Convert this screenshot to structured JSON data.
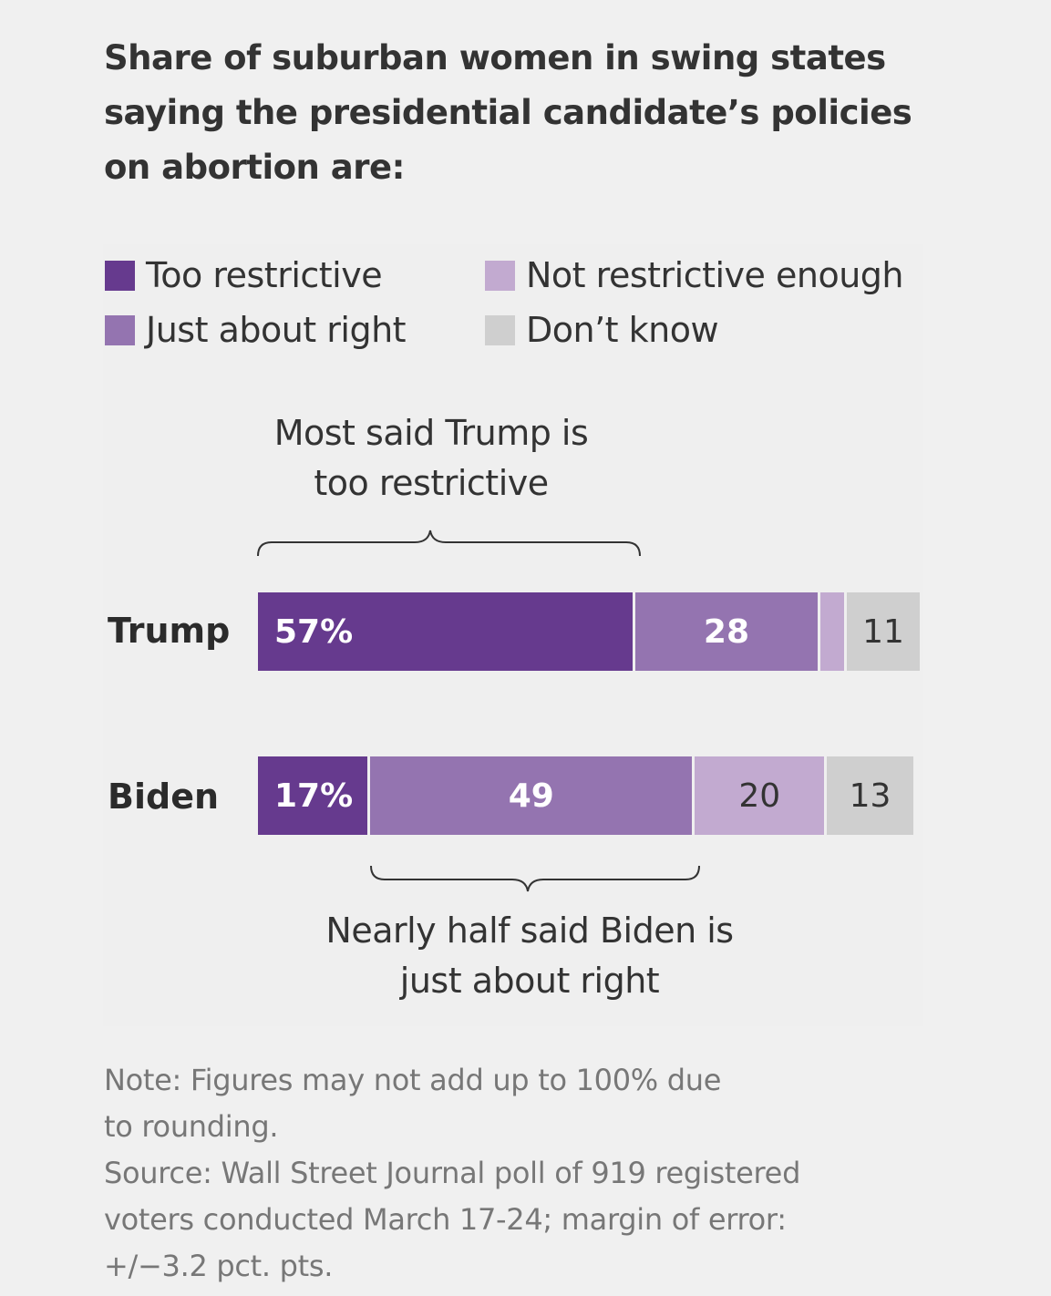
{
  "chart_data": {
    "type": "bar",
    "orientation": "horizontal-stacked",
    "title": "Share of suburban women in swing states saying the presidential candidate’s policies on abortion are:",
    "categories": [
      "Trump",
      "Biden"
    ],
    "series": [
      {
        "name": "Too restrictive",
        "color": "#663a8e",
        "values": [
          57,
          17
        ],
        "labels": [
          "57%",
          "17%"
        ],
        "label_color": "#ffffff",
        "label_bold": true
      },
      {
        "name": "Just about right",
        "color": "#9474b0",
        "values": [
          28,
          49
        ],
        "labels": [
          "28",
          "49"
        ],
        "label_color": "#ffffff",
        "label_bold": true
      },
      {
        "name": "Not restrictive enough",
        "color": "#c2aad0",
        "values": [
          4,
          20
        ],
        "labels": [
          "",
          "20"
        ],
        "label_color": "#333333",
        "label_bold": false
      },
      {
        "name": "Don’t know",
        "color": "#cfcfcf",
        "values": [
          11,
          13
        ],
        "labels": [
          "11",
          "13"
        ],
        "label_color": "#333333",
        "label_bold": false
      }
    ],
    "xlim": [
      0,
      100
    ],
    "legend_placement": "top",
    "annotations": {
      "trump": [
        "Most said Trump is",
        "too restrictive"
      ],
      "biden": [
        "Nearly half said Biden is",
        "just about right"
      ]
    }
  },
  "notes": [
    "Note: Figures may not add up to 100% due",
    "to rounding.",
    "Source: Wall Street Journal poll of 919 registered",
    "voters conducted March 17-24; margin of error:",
    "+/−3.2 pct. pts."
  ]
}
